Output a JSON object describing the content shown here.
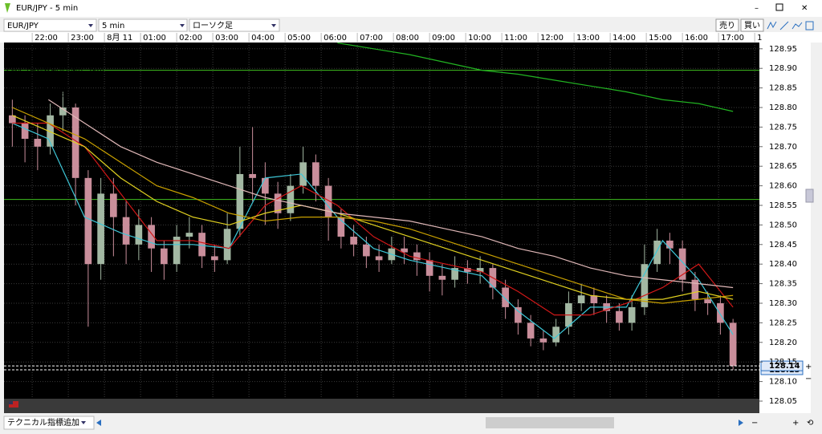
{
  "window": {
    "title": "EUR/JPY - 5 min"
  },
  "toolbar": {
    "symbol": "EUR/JPY",
    "interval": "5 min",
    "chart_style": "ローソク足",
    "sell": "売り",
    "buy": "買い"
  },
  "footer": {
    "add_indicator": "テクニカル指標追加"
  },
  "chart_data": {
    "type": "candlestick",
    "name": "EUR/JPY (ローソク足)",
    "up_color": "#a3b8a3",
    "down_color": "#c98e9b",
    "grid": true,
    "xlim": [
      21.22,
      42.13
    ],
    "xticks": [
      {
        "value": 22,
        "label": "22:00"
      },
      {
        "value": 23,
        "label": "23:00"
      },
      {
        "value": 24,
        "label": "8月 11"
      },
      {
        "value": 25,
        "label": "01:00"
      },
      {
        "value": 26,
        "label": "02:00"
      },
      {
        "value": 27,
        "label": "03:00"
      },
      {
        "value": 28,
        "label": "04:00"
      },
      {
        "value": 29,
        "label": "05:00"
      },
      {
        "value": 30,
        "label": "06:00"
      },
      {
        "value": 31,
        "label": "07:00"
      },
      {
        "value": 32,
        "label": "08:00"
      },
      {
        "value": 33,
        "label": "09:00"
      },
      {
        "value": 34,
        "label": "10:00"
      },
      {
        "value": 35,
        "label": "11:00"
      },
      {
        "value": 36,
        "label": "12:00"
      },
      {
        "value": 37,
        "label": "13:00"
      },
      {
        "value": 38,
        "label": "14:00"
      },
      {
        "value": 39,
        "label": "15:00"
      },
      {
        "value": 40,
        "label": "16:00"
      },
      {
        "value": 41,
        "label": "17:00"
      },
      {
        "value": 42,
        "label": "1"
      }
    ],
    "ylim": [
      128.05,
      128.966
    ],
    "yticks": [
      128.05,
      {
        "value": 128.1,
        "label": "128.10"
      },
      128.15,
      {
        "value": 128.2,
        "label": "128.20"
      },
      128.25,
      {
        "value": 128.3,
        "label": "128.30"
      },
      128.35,
      {
        "value": 128.4,
        "label": "128.40"
      },
      128.45,
      {
        "value": 128.5,
        "label": "128.50"
      },
      128.55,
      {
        "value": 128.6,
        "label": "128.60"
      },
      128.65,
      {
        "value": 128.7,
        "label": "128.70"
      },
      128.75,
      {
        "value": 128.8,
        "label": "128.80"
      },
      128.85,
      {
        "value": 128.9,
        "label": "128.90"
      },
      128.95
    ],
    "x": [
      21.45,
      21.8,
      22.15,
      22.5,
      22.85,
      23.2,
      23.55,
      23.9,
      24.25,
      24.6,
      24.95,
      25.3,
      25.65,
      26,
      26.35,
      26.7,
      27.05,
      27.4,
      27.75,
      28.1,
      28.45,
      28.8,
      29.15,
      29.5,
      29.85,
      30.2,
      30.55,
      30.9,
      31.25,
      31.6,
      31.95,
      32.3,
      32.65,
      33,
      33.35,
      33.7,
      34.05,
      34.4,
      34.75,
      35.1,
      35.45,
      35.8,
      36.15,
      36.5,
      36.85,
      37.2,
      37.55,
      37.9,
      38.25,
      38.6,
      38.95,
      39.3,
      39.65,
      40,
      40.35,
      40.7,
      41.05,
      41.4
    ],
    "open": [
      128.78,
      128.76,
      128.72,
      128.7,
      128.78,
      128.8,
      128.62,
      128.4,
      128.58,
      128.52,
      128.45,
      128.5,
      128.44,
      128.4,
      128.47,
      128.48,
      128.42,
      128.41,
      128.49,
      128.63,
      128.62,
      128.58,
      128.53,
      128.6,
      128.66,
      128.6,
      128.52,
      128.47,
      128.45,
      128.42,
      128.41,
      128.44,
      128.43,
      128.41,
      128.37,
      128.36,
      128.39,
      128.38,
      128.39,
      128.34,
      128.29,
      128.25,
      128.21,
      128.2,
      128.24,
      128.3,
      128.32,
      128.3,
      128.28,
      128.25,
      128.29,
      128.4,
      128.46,
      128.44,
      128.36,
      128.31,
      128.3,
      128.25
    ],
    "high": [
      128.82,
      128.78,
      128.76,
      128.81,
      128.84,
      128.81,
      128.64,
      128.62,
      128.62,
      128.56,
      128.54,
      128.52,
      128.46,
      128.5,
      128.52,
      128.5,
      128.45,
      128.53,
      128.7,
      128.75,
      128.66,
      128.61,
      128.63,
      128.7,
      128.68,
      128.62,
      128.54,
      128.5,
      128.47,
      128.45,
      128.47,
      128.47,
      128.45,
      128.43,
      128.4,
      128.42,
      128.41,
      128.42,
      128.4,
      128.36,
      128.31,
      128.27,
      128.23,
      128.26,
      128.33,
      128.35,
      128.34,
      128.32,
      128.3,
      128.32,
      128.45,
      128.49,
      128.48,
      128.46,
      128.38,
      128.33,
      128.32,
      128.26
    ],
    "low": [
      128.7,
      128.66,
      128.64,
      128.68,
      128.74,
      128.55,
      128.24,
      128.36,
      128.42,
      128.4,
      128.41,
      128.38,
      128.36,
      128.38,
      128.44,
      128.39,
      128.38,
      128.4,
      128.47,
      128.56,
      128.5,
      128.49,
      128.51,
      128.58,
      128.56,
      128.46,
      128.44,
      128.42,
      128.39,
      128.38,
      128.4,
      128.4,
      128.37,
      128.33,
      128.32,
      128.34,
      128.35,
      128.35,
      128.31,
      128.26,
      128.22,
      128.19,
      128.18,
      128.19,
      128.22,
      128.28,
      128.27,
      128.25,
      128.23,
      128.23,
      128.27,
      128.38,
      128.4,
      128.33,
      128.28,
      128.27,
      128.22,
      128.13
    ],
    "close": [
      128.76,
      128.72,
      128.7,
      128.78,
      128.8,
      128.62,
      128.4,
      128.58,
      128.52,
      128.45,
      128.5,
      128.44,
      128.4,
      128.47,
      128.48,
      128.42,
      128.41,
      128.49,
      128.63,
      128.62,
      128.58,
      128.53,
      128.6,
      128.66,
      128.6,
      128.52,
      128.47,
      128.45,
      128.42,
      128.41,
      128.44,
      128.43,
      128.41,
      128.37,
      128.36,
      128.39,
      128.38,
      128.39,
      128.34,
      128.29,
      128.25,
      128.21,
      128.2,
      128.24,
      128.3,
      128.32,
      128.3,
      128.28,
      128.25,
      128.29,
      128.4,
      128.46,
      128.44,
      128.36,
      128.31,
      128.3,
      128.25,
      128.14
    ],
    "series": [
      {
        "name": "SMA（単純移動平均線） (8)",
        "color": "#3ec8d8",
        "x": [
          21.45,
          22.45,
          23.45,
          24.45,
          25.45,
          26.45,
          27.45,
          28.45,
          29.45,
          30.45,
          31.45,
          32.45,
          33.45,
          34.45,
          35.45,
          36.45,
          37.45,
          38.45,
          39.45,
          40.45,
          41.4
        ],
        "values": [
          128.76,
          128.72,
          128.52,
          128.48,
          128.45,
          128.45,
          128.44,
          128.62,
          128.63,
          128.52,
          128.44,
          128.41,
          128.39,
          128.37,
          128.28,
          128.21,
          128.29,
          128.29,
          128.46,
          128.36,
          128.22
        ]
      },
      {
        "name": "SMA（単純移動平均線） (20)",
        "color": "#d01818",
        "x": [
          21.45,
          22.45,
          23.45,
          24.45,
          25.45,
          26.45,
          27.45,
          28.45,
          29.45,
          30.45,
          31.45,
          32.45,
          33.45,
          34.45,
          35.45,
          36.45,
          37.45,
          38.45,
          39.45,
          40.45,
          41.4
        ],
        "values": [
          128.76,
          128.76,
          128.7,
          128.58,
          128.46,
          128.46,
          128.44,
          128.55,
          128.6,
          128.55,
          128.47,
          128.42,
          128.4,
          128.38,
          128.33,
          128.27,
          128.27,
          128.3,
          128.34,
          128.4,
          128.29
        ]
      },
      {
        "name": "SMA（単純移動平均線） (60)",
        "color": "#e0d020",
        "x": [
          21.45,
          22.45,
          23.45,
          24.45,
          25.45,
          26.45,
          27.45,
          28.45,
          29.45,
          30.45,
          31.45,
          32.45,
          33.45,
          34.45,
          35.45,
          36.45,
          37.45,
          38.45,
          39.45,
          40.45,
          41.4
        ],
        "values": [
          128.78,
          128.74,
          128.7,
          128.62,
          128.56,
          128.52,
          128.5,
          128.53,
          128.55,
          128.53,
          128.5,
          128.47,
          128.44,
          128.41,
          128.38,
          128.35,
          128.32,
          128.31,
          128.31,
          128.33,
          128.31
        ]
      },
      {
        "name": "SMA（単純移動平均線） (80)",
        "color": "#c8a000",
        "x": [
          21.45,
          22.45,
          23.45,
          24.45,
          25.45,
          26.45,
          27.45,
          28.45,
          29.45,
          30.45,
          31.45,
          32.45,
          33.45,
          34.45,
          35.45,
          36.45,
          37.45,
          38.45,
          39.45,
          40.45,
          41.4
        ],
        "values": [
          128.8,
          128.76,
          128.72,
          128.66,
          128.6,
          128.57,
          128.53,
          128.51,
          128.52,
          128.52,
          128.51,
          128.49,
          128.46,
          128.43,
          128.4,
          128.37,
          128.34,
          128.31,
          128.3,
          128.31,
          128.32
        ]
      },
      {
        "name": "SMA（単純移動平均線） (120)",
        "color": "#e0b8b8",
        "x": [
          21.45,
          22.45,
          23.45,
          24.45,
          25.45,
          26.45,
          27.45,
          28.45,
          29.45,
          30.45,
          31.45,
          32.45,
          33.45,
          34.45,
          35.45,
          36.45,
          37.45,
          38.45,
          39.45,
          40.45,
          41.4
        ],
        "values": [
          null,
          128.82,
          128.76,
          128.7,
          128.66,
          128.63,
          128.6,
          128.57,
          128.55,
          128.53,
          128.52,
          128.51,
          128.49,
          128.47,
          128.44,
          128.42,
          128.39,
          128.37,
          128.36,
          128.35,
          128.34
        ]
      },
      {
        "name": "SMA（単純移動平均線） (480)",
        "color": "#22b422",
        "x": [
          30.45,
          31.45,
          32.45,
          33.45,
          34.45,
          35.45,
          36.45,
          37.45,
          38.45,
          39.45,
          40.45,
          41.4
        ],
        "values": [
          128.965,
          128.95,
          128.935,
          128.915,
          128.895,
          128.885,
          128.87,
          128.855,
          128.84,
          128.82,
          128.81,
          128.79
        ]
      }
    ],
    "hlines": {
      "color": "#3fbf1f",
      "values": [
        128.895,
        128.565
      ]
    },
    "price_lines": [
      {
        "value": 128.13,
        "label": "128.13"
      },
      {
        "value": 128.14,
        "label": "128.14"
      }
    ]
  }
}
